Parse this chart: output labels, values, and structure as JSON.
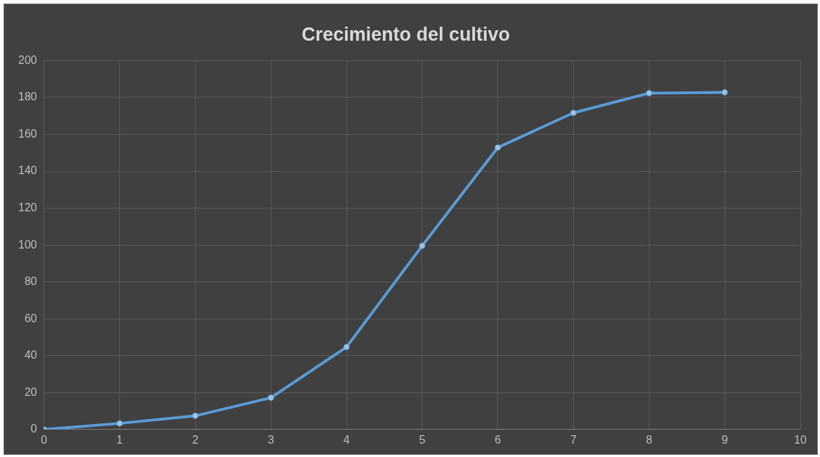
{
  "chart_data": {
    "type": "line",
    "title": "Crecimiento del cultivo",
    "x": [
      0,
      1,
      2,
      3,
      4,
      5,
      6,
      7,
      8,
      9
    ],
    "series": [
      {
        "color": "#5b9bd5",
        "values": [
          0,
          3.3,
          7.4,
          17.2,
          44.7,
          99.6,
          152.9,
          171.7,
          182.4,
          182.8
        ]
      }
    ],
    "xlim": [
      0,
      10
    ],
    "xticks": [
      0,
      1,
      2,
      3,
      4,
      5,
      6,
      7,
      8,
      9,
      10
    ],
    "ylim": [
      0,
      200
    ],
    "yticks": [
      0,
      20,
      40,
      60,
      80,
      100,
      120,
      140,
      160,
      180,
      200
    ],
    "grid": true,
    "legend": false,
    "marker": "circle",
    "line_style": "solid"
  }
}
